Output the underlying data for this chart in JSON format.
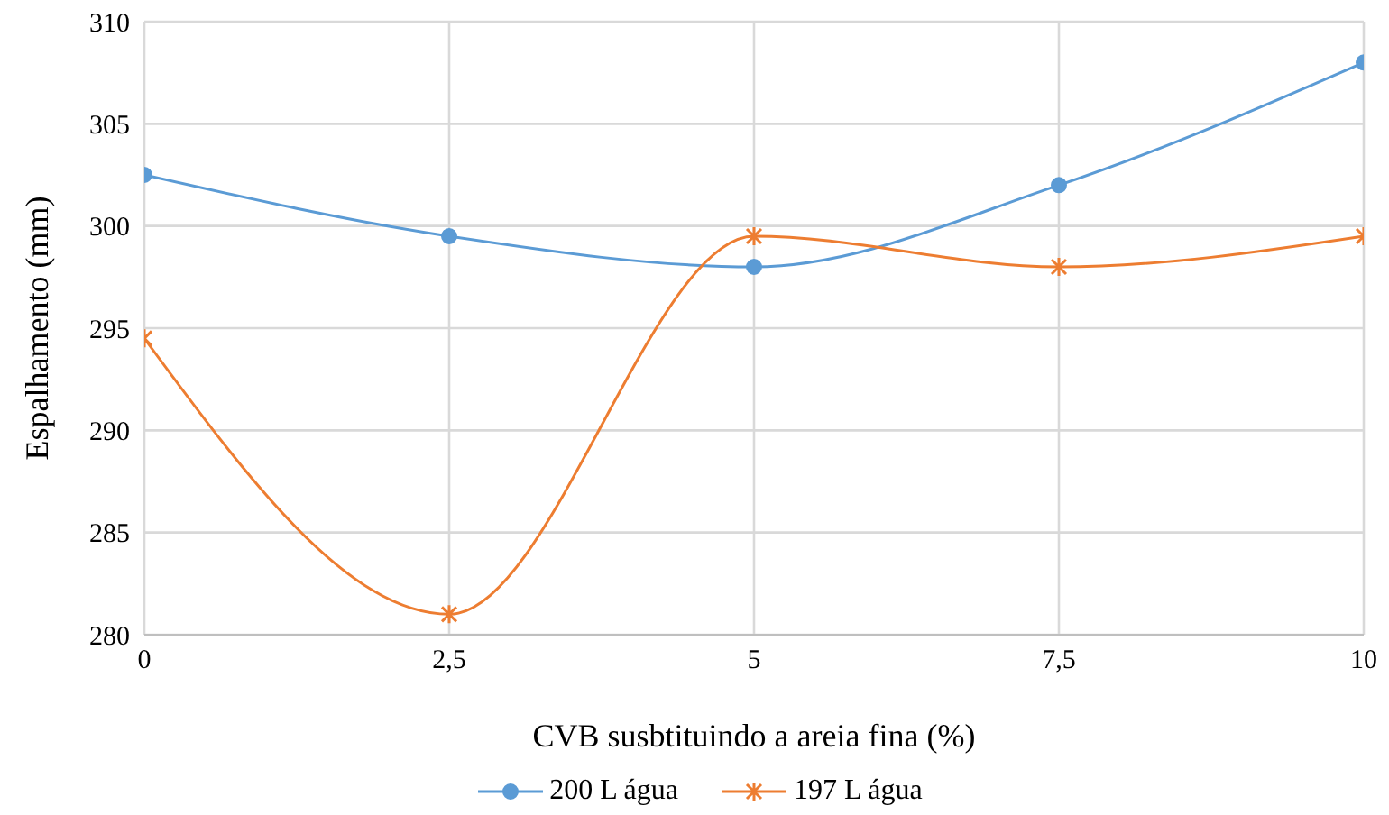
{
  "chart_data": {
    "type": "line",
    "xlabel": "CVB susbtituindo a areia fina (%)",
    "ylabel": "Espalhamento (mm)",
    "x": [
      0,
      2.5,
      5,
      7.5,
      10
    ],
    "series": [
      {
        "name": "200 L água",
        "color": "#5b9bd5",
        "marker": "circle",
        "values": [
          302.5,
          299.5,
          298,
          302,
          308
        ]
      },
      {
        "name": "197 L água",
        "color": "#ed7d31",
        "marker": "cross",
        "values": [
          294.5,
          281,
          299.5,
          298,
          299.5
        ]
      }
    ],
    "xlim": [
      0,
      10
    ],
    "xticks": [
      0,
      {
        "value": 2.5,
        "label": "2,5"
      },
      5,
      {
        "value": 7.5,
        "label": "7,5"
      },
      10
    ],
    "ylim": [
      280,
      310
    ],
    "yticks": [
      280,
      285,
      290,
      295,
      300,
      305,
      310
    ],
    "grid": true,
    "legend": "bottom"
  }
}
